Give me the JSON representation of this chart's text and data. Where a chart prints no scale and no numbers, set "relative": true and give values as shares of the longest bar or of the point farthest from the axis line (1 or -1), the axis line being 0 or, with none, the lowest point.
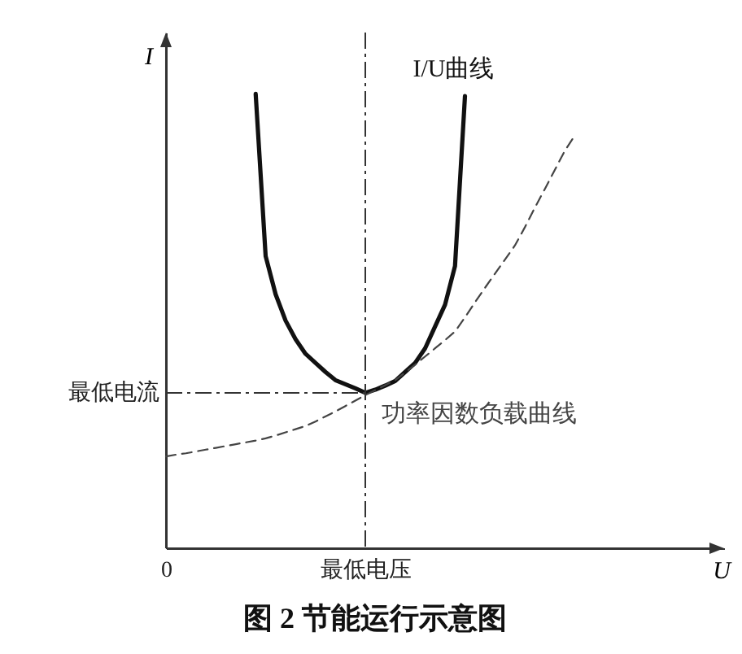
{
  "chart_data": {
    "type": "line",
    "title": "图 2 节能运行示意图",
    "xlabel": "U",
    "ylabel": "I",
    "relative": true,
    "categories": [
      "0",
      null,
      null,
      null,
      null,
      null,
      null,
      null,
      null,
      null,
      null,
      null,
      null,
      null,
      null,
      null,
      null,
      null,
      null,
      null,
      "最低电压",
      null,
      null,
      null,
      null,
      null,
      null,
      null,
      null,
      null,
      null,
      null,
      null,
      null,
      null,
      null,
      null,
      null,
      null,
      null,
      null,
      null,
      null,
      null,
      null,
      null,
      null,
      null,
      null,
      null,
      null,
      null,
      null,
      null,
      null,
      null,
      null
    ],
    "series": [
      {
        "name": "I/U曲线",
        "color": "#111111",
        "line_style": "solid",
        "values": [
          null,
          null,
          null,
          null,
          null,
          null,
          null,
          null,
          null,
          1.0,
          0.643,
          0.559,
          0.501,
          0.46,
          0.428,
          0.408,
          0.388,
          0.37,
          0.361,
          0.352,
          0.342,
          0.349,
          0.358,
          0.368,
          0.388,
          0.408,
          0.44,
          0.488,
          0.536,
          0.621,
          0.995,
          null,
          null,
          null,
          null,
          null,
          null,
          null,
          null,
          null,
          null,
          null,
          null,
          null,
          null,
          null,
          null,
          null,
          null,
          null,
          null,
          null,
          null,
          null,
          null,
          null,
          null
        ]
      },
      {
        "name": "功率因数负载曲线",
        "color": "#444444",
        "line_style": "dashed",
        "values": [
          0.202,
          0.206,
          0.209,
          0.213,
          0.217,
          0.221,
          0.225,
          0.229,
          0.233,
          0.237,
          0.242,
          0.248,
          0.255,
          0.262,
          0.269,
          0.279,
          0.29,
          0.301,
          0.313,
          0.325,
          0.337,
          0.348,
          0.359,
          0.37,
          0.387,
          0.404,
          0.422,
          0.44,
          0.458,
          0.477,
          0.508,
          0.541,
          0.573,
          0.604,
          0.635,
          0.666,
          0.706,
          0.749,
          0.79,
          0.832,
          0.874,
          0.908,
          null,
          null,
          null,
          null,
          null,
          null,
          null,
          null,
          null,
          null,
          null,
          null,
          null,
          null,
          null
        ]
      }
    ],
    "ref_lines": [
      {
        "axis": "x",
        "value": "最低电压",
        "line_style": "dashdot",
        "color": "#333333"
      },
      {
        "axis": "y",
        "value": 0.342,
        "label": "最低电流",
        "line_style": "dashdot",
        "color": "#333333"
      }
    ]
  }
}
